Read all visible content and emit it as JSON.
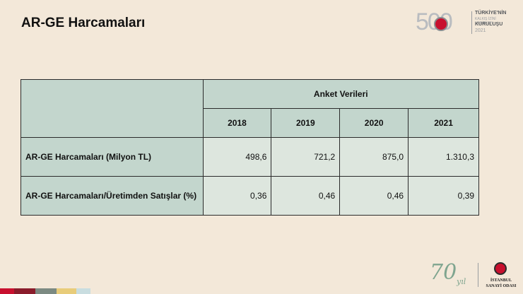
{
  "title": "AR-GE Harcamaları",
  "logo_500": {
    "number": "500",
    "line1": "TÜRKİYE'NİN",
    "line2": "KALKIŞ İZİNİ VERİRKEN",
    "line3": "KURULUŞU",
    "line4": "2021"
  },
  "table": {
    "group_header": "Anket Verileri",
    "years": [
      "2018",
      "2019",
      "2020",
      "2021"
    ],
    "rows": [
      {
        "label": "AR-GE Harcamaları (Milyon TL)",
        "values": [
          "498,6",
          "721,2",
          "875,0",
          "1.310,3"
        ]
      },
      {
        "label": "AR-GE Harcamaları/Üretimden Satışlar (%)",
        "values": [
          "0,36",
          "0,46",
          "0,46",
          "0,39"
        ]
      }
    ]
  },
  "strip_colors": [
    "#c8102e",
    "#8a1c2b",
    "#7c8a82",
    "#e8cc7a",
    "#c9dde0"
  ],
  "logo_70": {
    "number": "70",
    "suffix": "yıl"
  },
  "logo_iso": {
    "line1": "İSTANBUL",
    "line2": "SANAYİ ODASI"
  }
}
